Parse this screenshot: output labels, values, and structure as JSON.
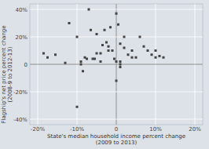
{
  "chart_data": {
    "type": "scatter",
    "xlabel": "State's median household income percent change\n(2009 to 2013)",
    "ylabel": "Flagship's net price percent change\n(2008-9 to 2012-13)",
    "xlim": [
      -0.22,
      0.22
    ],
    "ylim": [
      -0.44,
      0.44
    ],
    "xticks": [
      {
        "value": -0.2,
        "label": "-20%"
      },
      {
        "value": -0.1,
        "label": "-10%"
      },
      0,
      {
        "value": 0.1,
        "label": "10%"
      },
      {
        "value": 0.2,
        "label": "20%"
      }
    ],
    "yticks": [
      {
        "value": -0.4,
        "label": "-40%"
      },
      {
        "value": -0.2,
        "label": "-20%"
      },
      0,
      {
        "value": 0.2,
        "label": "20%"
      },
      {
        "value": 0.4,
        "label": "40%"
      }
    ],
    "grid": true,
    "color": "#444444",
    "marker": "square",
    "x": [
      -0.185,
      -0.175,
      -0.155,
      -0.13,
      -0.12,
      -0.1,
      -0.1,
      -0.09,
      -0.09,
      -0.085,
      -0.08,
      -0.075,
      -0.07,
      -0.065,
      -0.06,
      -0.055,
      -0.05,
      -0.05,
      -0.04,
      -0.04,
      -0.035,
      -0.03,
      -0.025,
      -0.02,
      -0.02,
      -0.015,
      -0.01,
      -0.005,
      0.0,
      0.0,
      0.0,
      0.005,
      0.01,
      0.01,
      0.01,
      0.01,
      0.02,
      0.02,
      0.03,
      0.04,
      0.04,
      0.05,
      0.06,
      0.07,
      0.08,
      0.09,
      0.1,
      0.1,
      0.11,
      0.12
    ],
    "values": [
      0.08,
      0.05,
      0.07,
      0.01,
      0.3,
      0.2,
      -0.31,
      0.0,
      0.02,
      -0.05,
      0.05,
      0.04,
      0.4,
      0.25,
      0.04,
      0.04,
      0.08,
      0.22,
      0.02,
      0.08,
      0.14,
      0.25,
      0.16,
      0.13,
      0.1,
      0.27,
      0.1,
      0.04,
      0.02,
      -0.12,
      0.37,
      0.29,
      0.0,
      0.15,
      0.02,
      -0.02,
      0.2,
      0.12,
      0.07,
      0.1,
      0.05,
      0.05,
      0.2,
      0.13,
      0.1,
      0.07,
      0.1,
      0.05,
      0.06,
      0.05
    ]
  }
}
